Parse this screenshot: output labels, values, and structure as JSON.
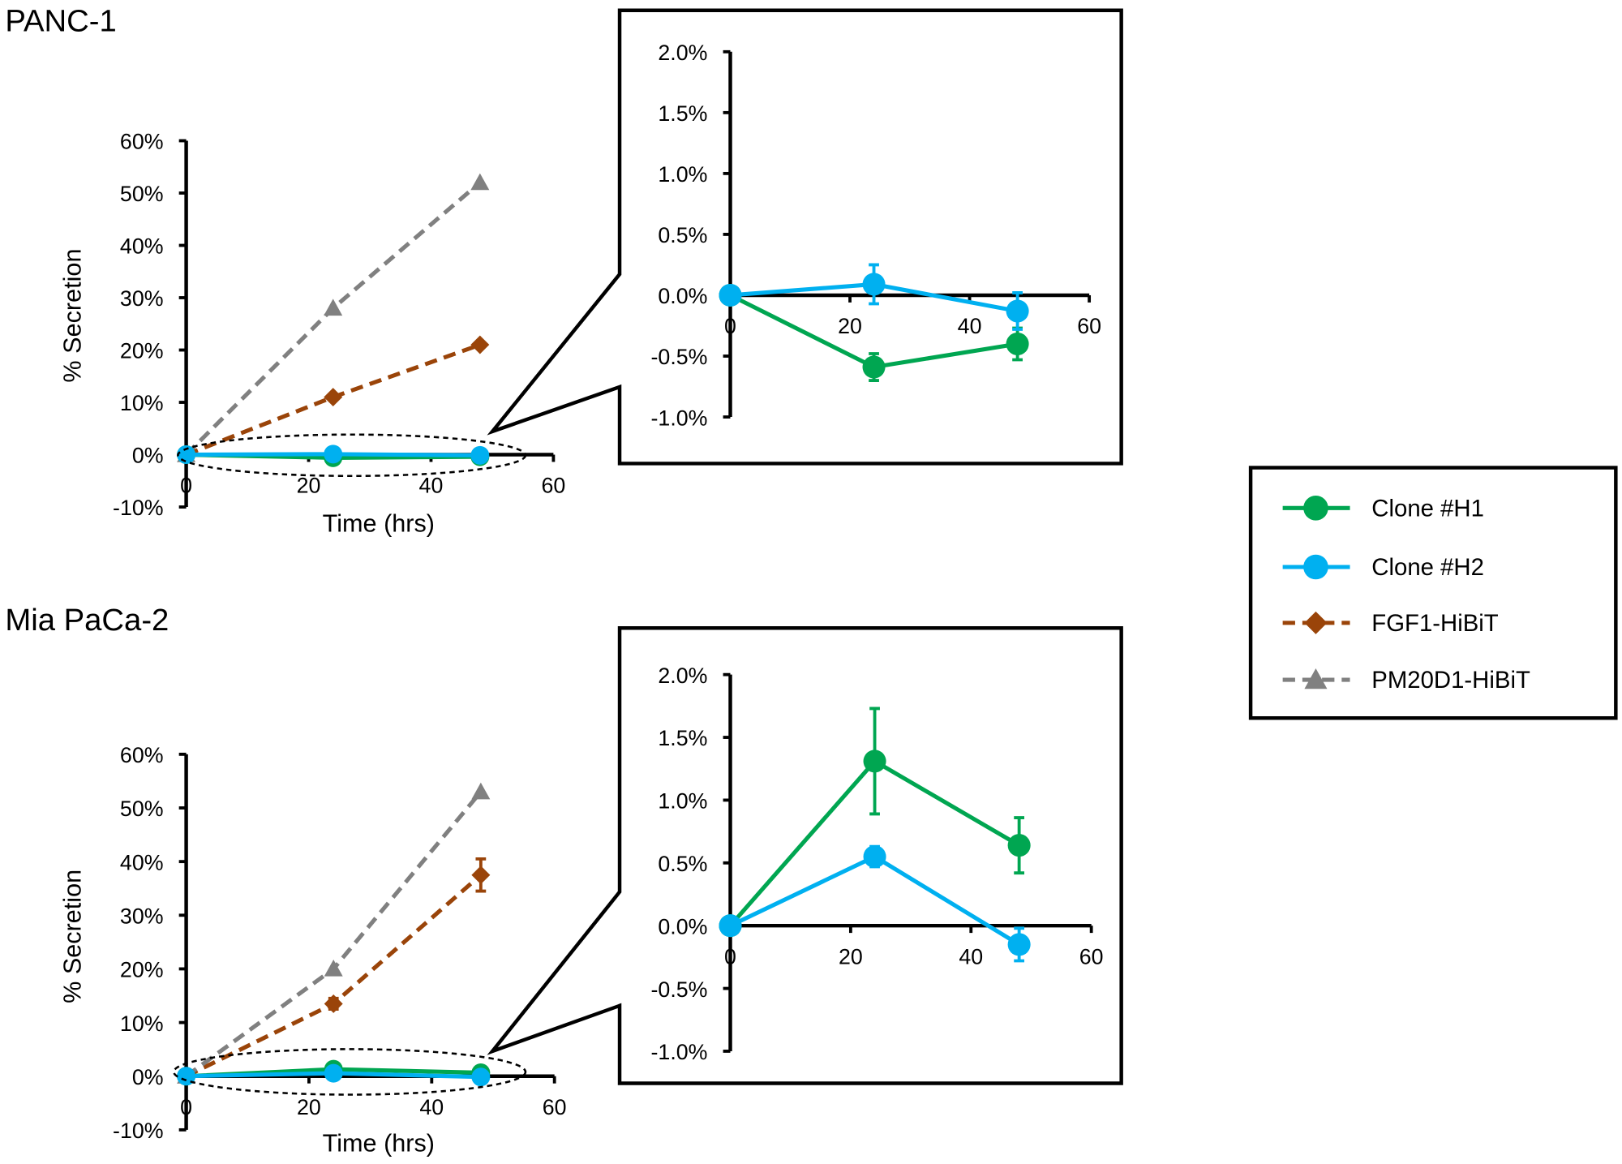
{
  "colors": {
    "Clone #H1": "#00A651",
    "Clone #H2": "#00B0F0",
    "FGF1-HiBiT": "#9A4409",
    "PM20D1-HiBiT": "#808080"
  },
  "legend": {
    "position": "right",
    "entries": [
      {
        "name": "Clone #H1",
        "marker": "circle",
        "dash": "solid"
      },
      {
        "name": "Clone #H2",
        "marker": "circle",
        "dash": "solid"
      },
      {
        "name": "FGF1-HiBiT",
        "marker": "diamond",
        "dash": "dashed"
      },
      {
        "name": "PM20D1-HiBiT",
        "marker": "triangle",
        "dash": "dashed"
      }
    ]
  },
  "chart_data": [
    {
      "type": "line",
      "panel_title": "PANC-1",
      "xlabel": "Time (hrs)",
      "ylabel": "% Secretion",
      "xlim": [
        0,
        60
      ],
      "xticks": [
        "0",
        "20",
        "40",
        "60"
      ],
      "ylim": [
        -10,
        60
      ],
      "yticks": [
        "60%",
        "50%",
        "40%",
        "30%",
        "20%",
        "10%",
        "0%",
        "-10%"
      ],
      "x": [
        0,
        24,
        48
      ],
      "series": [
        {
          "name": "Clone #H1",
          "values": [
            0,
            -0.6,
            -0.4
          ]
        },
        {
          "name": "Clone #H2",
          "values": [
            0,
            0.1,
            -0.13
          ]
        },
        {
          "name": "FGF1-HiBiT",
          "values": [
            0,
            11,
            21
          ]
        },
        {
          "name": "PM20D1-HiBiT",
          "values": [
            0,
            28,
            52
          ]
        }
      ]
    },
    {
      "type": "line",
      "panel_title": "",
      "inset_of": "PANC-1",
      "xlim": [
        0,
        60
      ],
      "xticks": [
        "0",
        "20",
        "40",
        "60"
      ],
      "ylim": [
        -1.0,
        2.0
      ],
      "yticks": [
        "2.0%",
        "1.5%",
        "1.0%",
        "0.5%",
        "0.0%",
        "-0.5%",
        "-1.0%"
      ],
      "x": [
        0,
        24,
        48
      ],
      "series": [
        {
          "name": "Clone #H1",
          "values": [
            0,
            -0.59,
            -0.4
          ],
          "error": [
            0,
            0.11,
            0.13
          ]
        },
        {
          "name": "Clone #H2",
          "values": [
            0,
            0.09,
            -0.13
          ],
          "error": [
            0,
            0.16,
            0.15
          ]
        }
      ]
    },
    {
      "type": "line",
      "panel_title": "Mia PaCa-2",
      "xlabel": "Time (hrs)",
      "ylabel": "% Secretion",
      "xlim": [
        0,
        60
      ],
      "xticks": [
        "0",
        "20",
        "40",
        "60"
      ],
      "ylim": [
        -10,
        60
      ],
      "yticks": [
        "60%",
        "50%",
        "40%",
        "30%",
        "20%",
        "10%",
        "0%",
        "-10%"
      ],
      "x": [
        0,
        24,
        48
      ],
      "series": [
        {
          "name": "Clone #H1",
          "values": [
            0,
            1.3,
            0.65
          ]
        },
        {
          "name": "Clone #H2",
          "values": [
            0,
            0.55,
            -0.15
          ]
        },
        {
          "name": "FGF1-HiBiT",
          "values": [
            0,
            13.5,
            37.5
          ],
          "error": [
            0,
            1,
            3
          ]
        },
        {
          "name": "PM20D1-HiBiT",
          "values": [
            0,
            20,
            53
          ]
        }
      ]
    },
    {
      "type": "line",
      "panel_title": "",
      "inset_of": "Mia PaCa-2",
      "xlim": [
        0,
        60
      ],
      "xticks": [
        "0",
        "20",
        "40",
        "60"
      ],
      "ylim": [
        -1.0,
        2.0
      ],
      "yticks": [
        "2.0%",
        "1.5%",
        "1.0%",
        "0.5%",
        "0.0%",
        "-0.5%",
        "-1.0%"
      ],
      "x": [
        0,
        24,
        48
      ],
      "series": [
        {
          "name": "Clone #H1",
          "values": [
            0,
            1.31,
            0.64
          ],
          "error": [
            0,
            0.42,
            0.22
          ]
        },
        {
          "name": "Clone #H2",
          "values": [
            0,
            0.55,
            -0.15
          ],
          "error": [
            0,
            0.08,
            0.13
          ]
        }
      ]
    }
  ]
}
